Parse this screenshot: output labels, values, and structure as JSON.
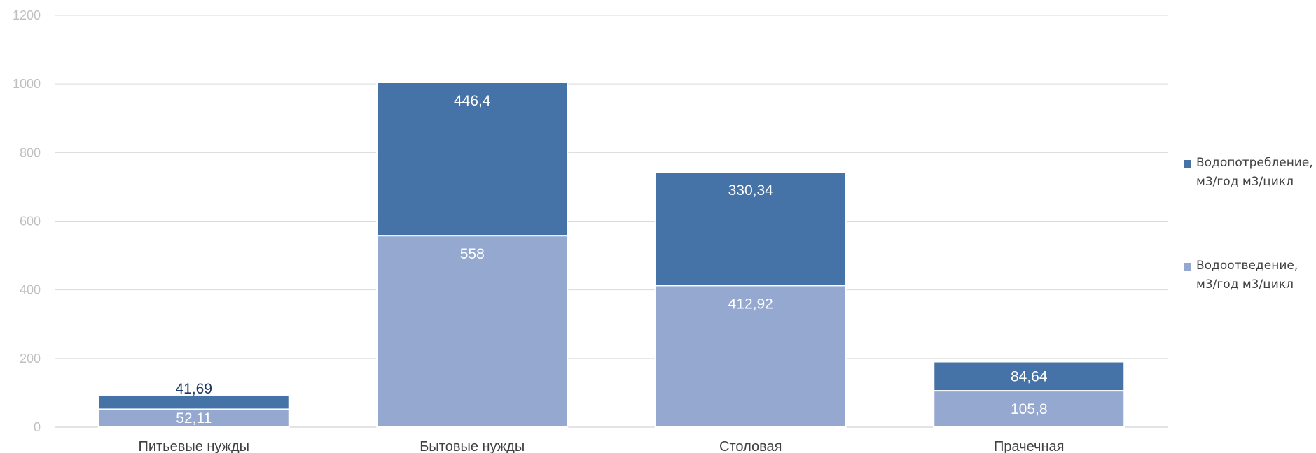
{
  "chart_data": {
    "type": "bar",
    "stacked": true,
    "categories": [
      "Питьевые нужды",
      "Бытовые нужды",
      "Столовая",
      "Прачечная"
    ],
    "series": [
      {
        "name": "Водоотведение, м3/год м3/цикл",
        "color": "#95a9d0",
        "values": [
          52.11,
          558,
          412.92,
          105.8
        ],
        "labels": [
          "52,11",
          "558",
          "412,92",
          "105,8"
        ]
      },
      {
        "name": "Водопотребление, м3/год м3/цикл",
        "color": "#4573a7",
        "values": [
          41.69,
          446.4,
          330.34,
          84.64
        ],
        "labels": [
          "41,69",
          "446,4",
          "330,34",
          "84,64"
        ]
      }
    ],
    "ylim": [
      0,
      1200
    ],
    "yticks": [
      0,
      200,
      400,
      600,
      800,
      1000,
      1200
    ],
    "grid": true,
    "legend_position": "right"
  },
  "legend": {
    "items": [
      {
        "line1": "Водопотребление,",
        "line2": "м3/год м3/цикл",
        "color": "#4573a7"
      },
      {
        "line1": "Водоотведение,",
        "line2": "м3/год м3/цикл",
        "color": "#95a9d0"
      }
    ]
  }
}
